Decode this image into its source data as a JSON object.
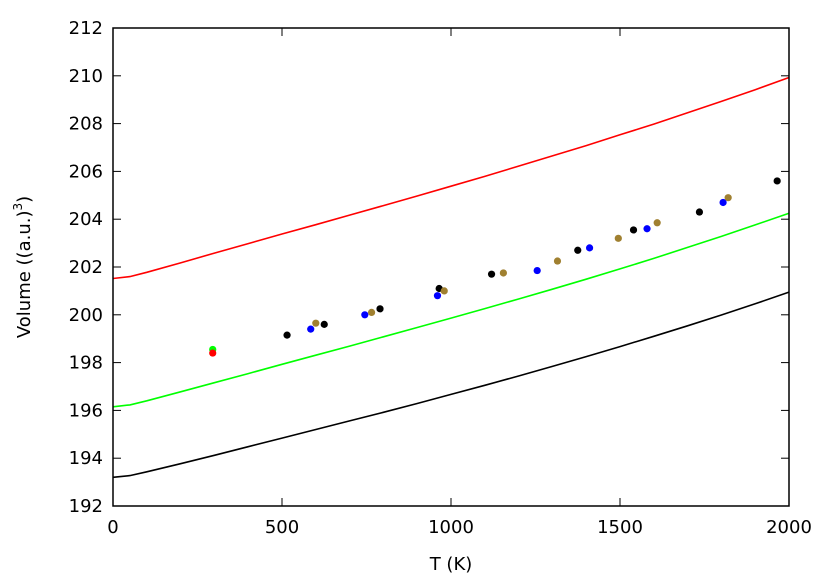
{
  "chart_data": {
    "type": "scatter",
    "xlabel": "T (K)",
    "ylabel_main": "Volume ((a.u.)",
    "ylabel_sup": "3",
    "ylabel_tail": ")",
    "xlim": [
      0,
      2000
    ],
    "ylim": [
      192,
      212
    ],
    "x_ticks": [
      0,
      500,
      1000,
      1500,
      2000
    ],
    "y_ticks": [
      192,
      194,
      196,
      198,
      200,
      202,
      204,
      206,
      208,
      210,
      212
    ],
    "grid": false,
    "legend": "none",
    "lines": [
      {
        "color": "#ff0000",
        "x": [
          0,
          50,
          100,
          200,
          300,
          400,
          500,
          600,
          700,
          800,
          900,
          1000,
          1100,
          1200,
          1300,
          1400,
          1500,
          1600,
          1700,
          1800,
          1900,
          2000
        ],
        "y": [
          201.52,
          201.6,
          201.78,
          202.17,
          202.58,
          202.98,
          203.38,
          203.77,
          204.17,
          204.57,
          204.97,
          205.38,
          205.79,
          206.22,
          206.65,
          207.08,
          207.53,
          207.98,
          208.45,
          208.93,
          209.42,
          209.93
        ]
      },
      {
        "color": "#00ff00",
        "x": [
          0,
          50,
          100,
          200,
          300,
          400,
          500,
          600,
          700,
          800,
          900,
          1000,
          1100,
          1200,
          1300,
          1400,
          1500,
          1600,
          1700,
          1800,
          1900,
          2000
        ],
        "y": [
          196.15,
          196.23,
          196.4,
          196.78,
          197.16,
          197.54,
          197.93,
          198.31,
          198.69,
          199.08,
          199.47,
          199.86,
          200.26,
          200.66,
          201.07,
          201.49,
          201.92,
          202.36,
          202.82,
          203.28,
          203.76,
          204.25
        ]
      },
      {
        "color": "#000000",
        "x": [
          0,
          50,
          100,
          200,
          300,
          400,
          500,
          600,
          700,
          800,
          900,
          1000,
          1100,
          1200,
          1300,
          1400,
          1500,
          1600,
          1700,
          1800,
          1900,
          2000
        ],
        "y": [
          193.2,
          193.27,
          193.43,
          193.77,
          194.12,
          194.48,
          194.84,
          195.2,
          195.56,
          195.92,
          196.29,
          196.67,
          197.05,
          197.44,
          197.84,
          198.25,
          198.67,
          199.1,
          199.54,
          199.99,
          200.46,
          200.95
        ]
      }
    ],
    "points": [
      {
        "color": "#00ff00",
        "x": 295,
        "y": 198.55
      },
      {
        "color": "#ff0000",
        "x": 295,
        "y": 198.4
      },
      {
        "color": "#000000",
        "x": 515,
        "y": 199.15
      },
      {
        "color": "#0000ff",
        "x": 585,
        "y": 199.4
      },
      {
        "color": "#a08030",
        "x": 600,
        "y": 199.65
      },
      {
        "color": "#000000",
        "x": 625,
        "y": 199.6
      },
      {
        "color": "#0000ff",
        "x": 745,
        "y": 200.0
      },
      {
        "color": "#a08030",
        "x": 765,
        "y": 200.1
      },
      {
        "color": "#000000",
        "x": 790,
        "y": 200.25
      },
      {
        "color": "#0000ff",
        "x": 960,
        "y": 200.8
      },
      {
        "color": "#000000",
        "x": 965,
        "y": 201.1
      },
      {
        "color": "#a08030",
        "x": 980,
        "y": 201.0
      },
      {
        "color": "#000000",
        "x": 1120,
        "y": 201.7
      },
      {
        "color": "#a08030",
        "x": 1155,
        "y": 201.75
      },
      {
        "color": "#0000ff",
        "x": 1255,
        "y": 201.85
      },
      {
        "color": "#a08030",
        "x": 1315,
        "y": 202.25
      },
      {
        "color": "#000000",
        "x": 1375,
        "y": 202.7
      },
      {
        "color": "#0000ff",
        "x": 1410,
        "y": 202.8
      },
      {
        "color": "#a08030",
        "x": 1495,
        "y": 203.2
      },
      {
        "color": "#000000",
        "x": 1540,
        "y": 203.55
      },
      {
        "color": "#0000ff",
        "x": 1580,
        "y": 203.6
      },
      {
        "color": "#a08030",
        "x": 1610,
        "y": 203.85
      },
      {
        "color": "#000000",
        "x": 1735,
        "y": 204.3
      },
      {
        "color": "#0000ff",
        "x": 1805,
        "y": 204.7
      },
      {
        "color": "#a08030",
        "x": 1820,
        "y": 204.9
      },
      {
        "color": "#000000",
        "x": 1965,
        "y": 205.6
      }
    ]
  }
}
